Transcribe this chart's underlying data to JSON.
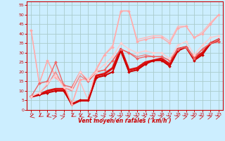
{
  "background_color": "#cceeff",
  "grid_color": "#aacccc",
  "xlabel": "Vent moyen/en rafales ( km/h )",
  "ylabel_ticks": [
    0,
    5,
    10,
    15,
    20,
    25,
    30,
    35,
    40,
    45,
    50,
    55
  ],
  "xlim": [
    -0.5,
    23.5
  ],
  "ylim": [
    0,
    57
  ],
  "lines": [
    {
      "x": [
        0,
        1,
        2,
        3,
        4,
        5,
        6,
        7,
        8,
        9,
        10,
        11,
        12,
        13,
        14,
        15,
        16,
        17,
        18,
        19,
        20,
        21,
        22,
        23
      ],
      "y": [
        7,
        8,
        9,
        10,
        10,
        3,
        5,
        5,
        17,
        18,
        20,
        31,
        20,
        21,
        24,
        26,
        26,
        23,
        31,
        33,
        26,
        29,
        35,
        36
      ],
      "color": "#cc0000",
      "lw": 1.4,
      "marker": "D",
      "ms": 2.0
    },
    {
      "x": [
        0,
        1,
        2,
        3,
        4,
        5,
        6,
        7,
        8,
        9,
        10,
        11,
        12,
        13,
        14,
        15,
        16,
        17,
        18,
        19,
        20,
        21,
        22,
        23
      ],
      "y": [
        7,
        8,
        10,
        11,
        11,
        3,
        5,
        5,
        18,
        19,
        22,
        32,
        21,
        22,
        25,
        26,
        27,
        24,
        32,
        33,
        27,
        30,
        35,
        37
      ],
      "color": "#dd1111",
      "lw": 2.2,
      "marker": null,
      "ms": 0
    },
    {
      "x": [
        0,
        1,
        2,
        3,
        4,
        5,
        6,
        7,
        8,
        9,
        10,
        11,
        12,
        13,
        14,
        15,
        16,
        17,
        18,
        19,
        20,
        21,
        22,
        23
      ],
      "y": [
        42,
        14,
        26,
        17,
        13,
        3,
        16,
        16,
        21,
        29,
        33,
        52,
        52,
        36,
        37,
        38,
        38,
        35,
        43,
        44,
        38,
        40,
        45,
        50
      ],
      "color": "#ffaaaa",
      "lw": 1.0,
      "marker": "D",
      "ms": 2.0
    },
    {
      "x": [
        0,
        1,
        2,
        3,
        4,
        5,
        6,
        7,
        8,
        9,
        10,
        11,
        12,
        13,
        14,
        15,
        16,
        17,
        18,
        19,
        20,
        21,
        22,
        23
      ],
      "y": [
        42,
        14,
        26,
        18,
        14,
        3,
        15,
        5,
        22,
        29,
        34,
        52,
        52,
        37,
        38,
        39,
        39,
        36,
        44,
        44,
        38,
        41,
        46,
        50
      ],
      "color": "#ffbbbb",
      "lw": 1.0,
      "marker": null,
      "ms": 0
    },
    {
      "x": [
        0,
        1,
        2,
        3,
        4,
        5,
        6,
        7,
        8,
        9,
        10,
        11,
        12,
        13,
        14,
        15,
        16,
        17,
        18,
        19,
        20,
        21,
        22,
        23
      ],
      "y": [
        7,
        14,
        15,
        25,
        13,
        12,
        20,
        15,
        20,
        21,
        26,
        32,
        30,
        27,
        28,
        28,
        28,
        26,
        32,
        33,
        27,
        32,
        35,
        36
      ],
      "color": "#ee6666",
      "lw": 1.0,
      "marker": "D",
      "ms": 2.0
    },
    {
      "x": [
        0,
        1,
        2,
        3,
        4,
        5,
        6,
        7,
        8,
        9,
        10,
        11,
        12,
        13,
        14,
        15,
        16,
        17,
        18,
        19,
        20,
        21,
        22,
        23
      ],
      "y": [
        7,
        9,
        13,
        20,
        12,
        10,
        18,
        15,
        20,
        21,
        26,
        32,
        30,
        28,
        29,
        28,
        28,
        26,
        32,
        33,
        28,
        32,
        35,
        37
      ],
      "color": "#ee8888",
      "lw": 1.0,
      "marker": null,
      "ms": 0
    },
    {
      "x": [
        0,
        1,
        2,
        3,
        4,
        5,
        6,
        7,
        8,
        9,
        10,
        11,
        12,
        13,
        14,
        15,
        16,
        17,
        18,
        19,
        20,
        21,
        22,
        23
      ],
      "y": [
        7,
        9,
        14,
        18,
        12,
        11,
        20,
        16,
        20,
        24,
        28,
        35,
        32,
        30,
        31,
        30,
        30,
        27,
        34,
        36,
        29,
        34,
        38,
        39
      ],
      "color": "#ffcccc",
      "lw": 1.0,
      "marker": "D",
      "ms": 2.0
    }
  ],
  "wind_dirs": [
    225,
    200,
    210,
    45,
    45,
    200,
    210,
    210,
    45,
    45,
    45,
    45,
    45,
    45,
    45,
    45,
    45,
    45,
    45,
    45,
    45,
    45,
    45,
    45
  ]
}
